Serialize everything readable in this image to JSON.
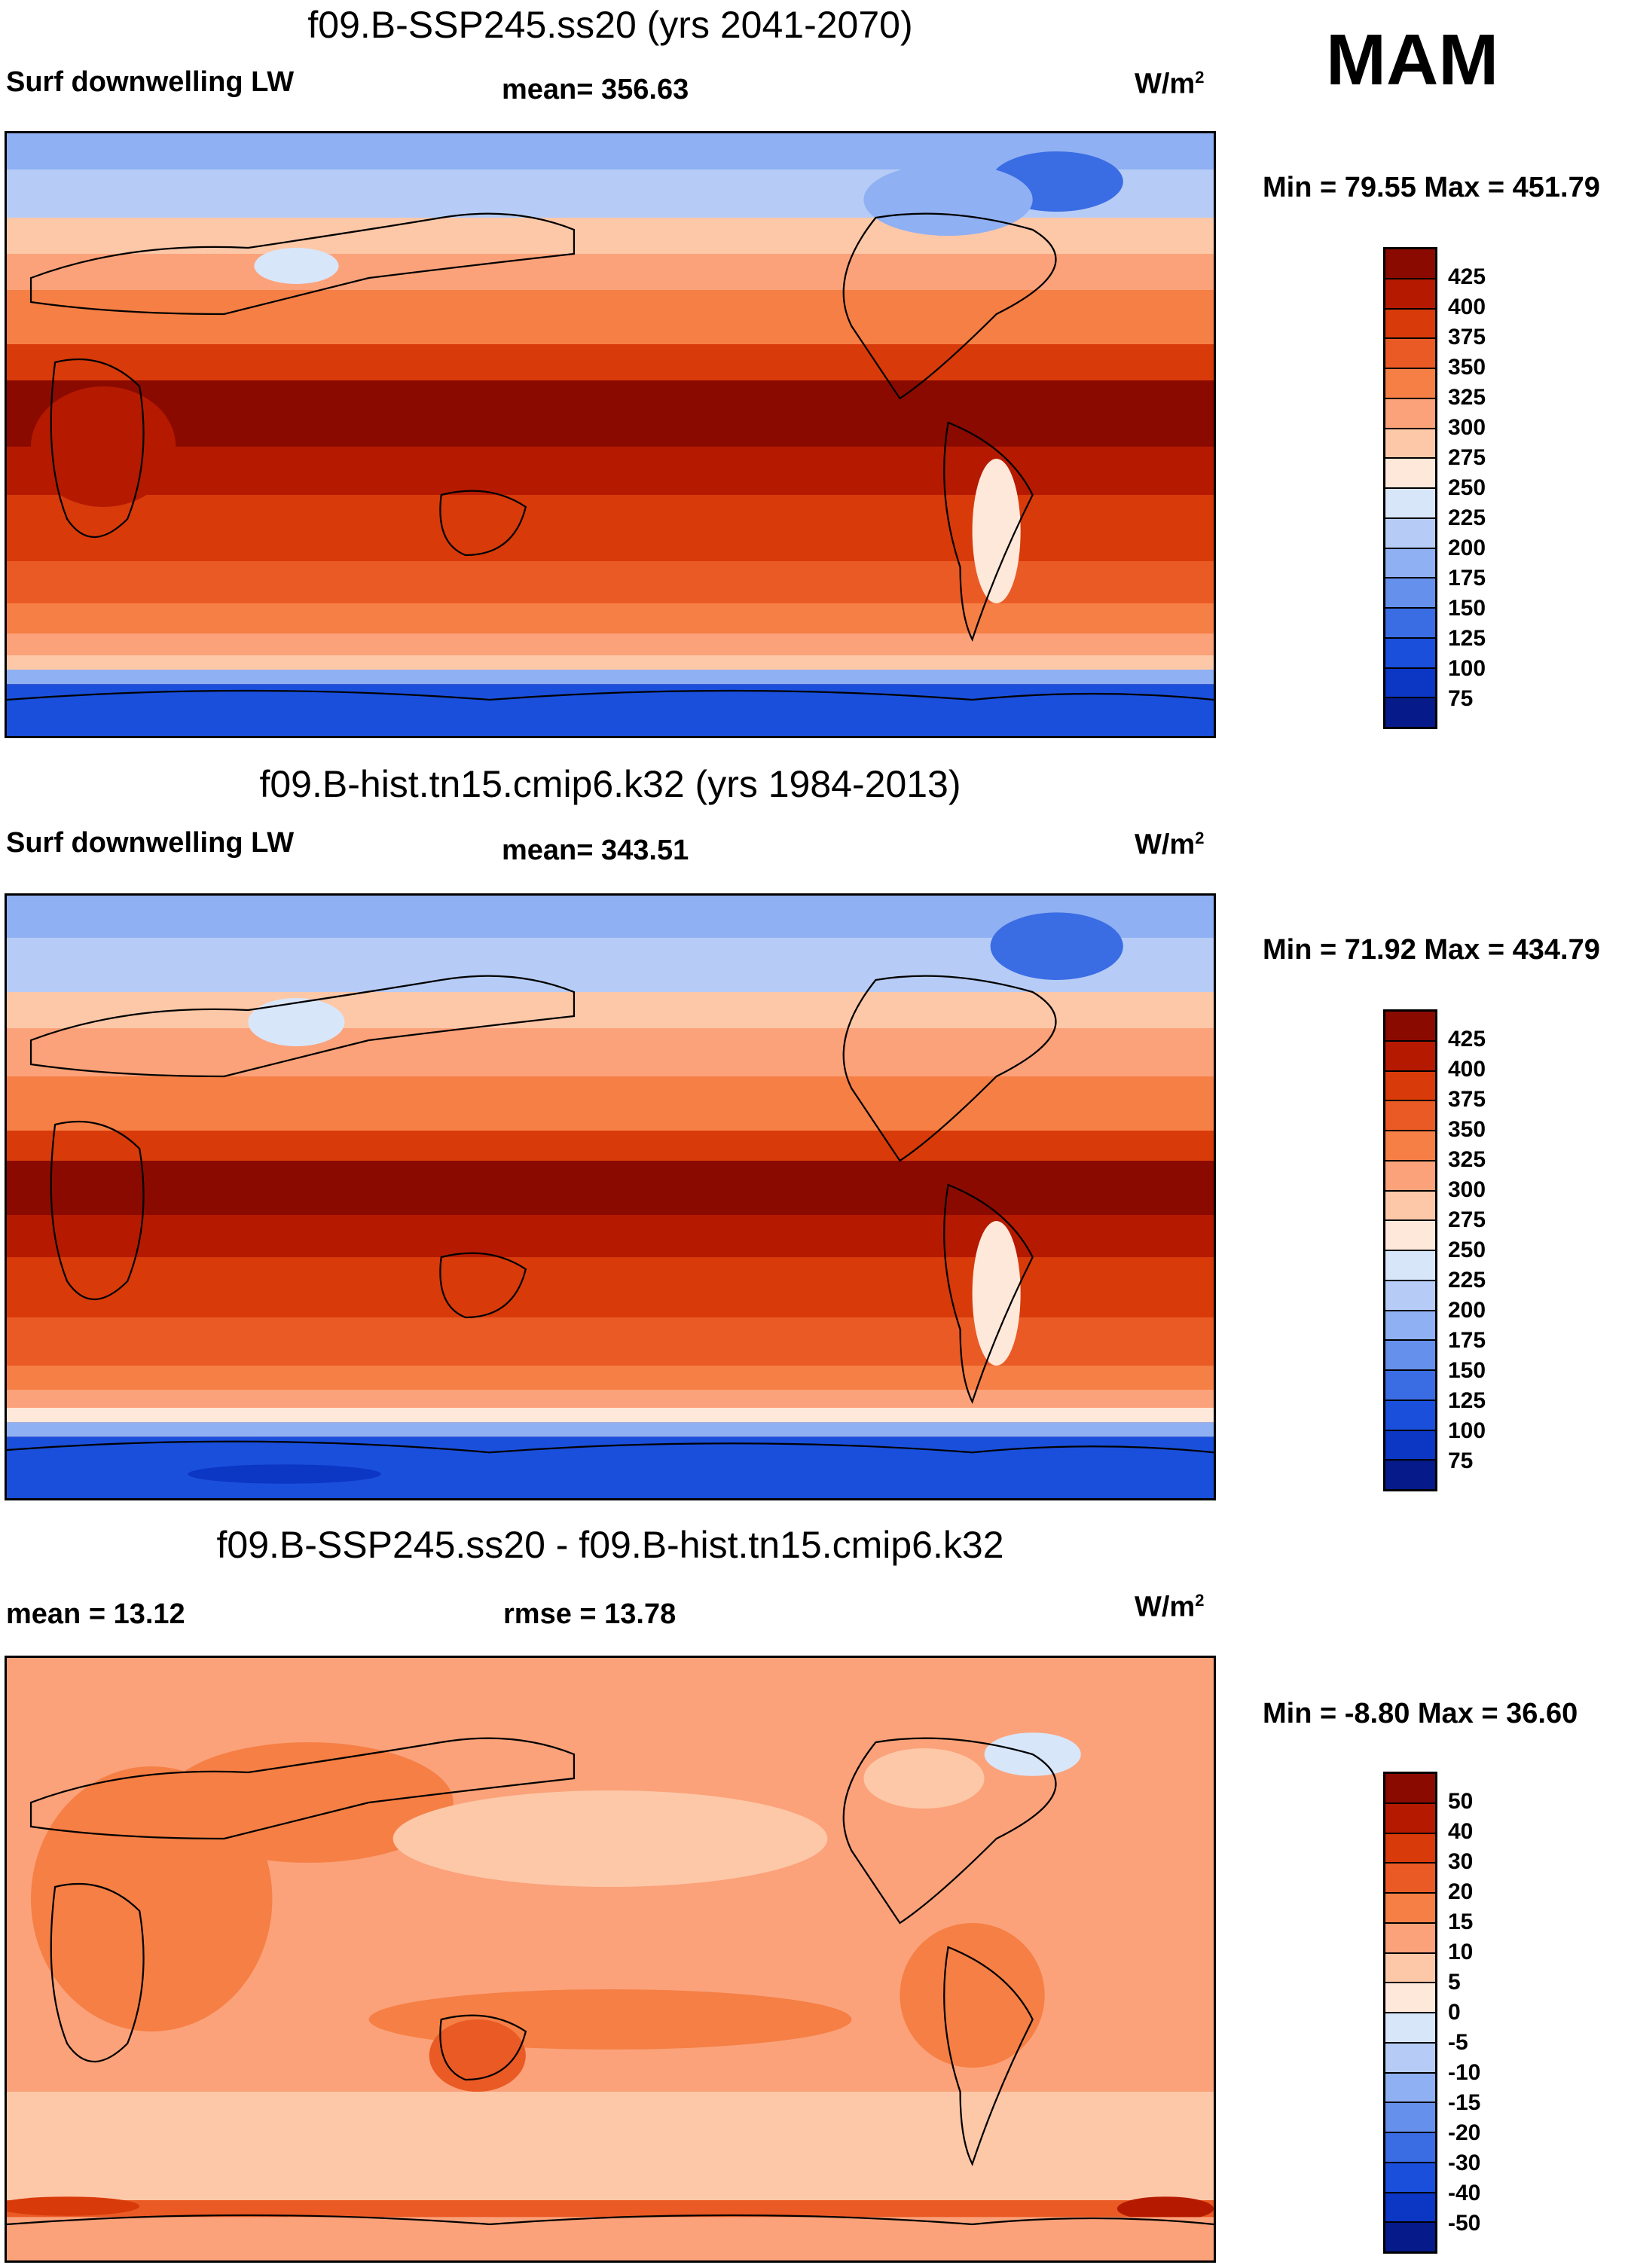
{
  "season": "MAM",
  "units": "W/m",
  "units_sup": "2",
  "panels": [
    {
      "title": "f09.B-SSP245.ss20 (yrs 2041-2070)",
      "left_label": "Surf downwelling LW",
      "center_label": "mean= 356.63",
      "minmax": "Min =  79.55 Max = 451.79"
    },
    {
      "title": "f09.B-hist.tn15.cmip6.k32 (yrs 1984-2013)",
      "left_label": "Surf downwelling LW",
      "center_label": "mean= 343.51",
      "minmax": "Min =  71.92 Max = 434.79"
    },
    {
      "title": "f09.B-SSP245.ss20 - f09.B-hist.tn15.cmip6.k32",
      "left_label": "mean =  13.12",
      "center_label": "rmse =  13.78",
      "minmax": "Min =  -8.80 Max =  36.60"
    }
  ],
  "colorbars": [
    {
      "labels": [
        "425",
        "400",
        "375",
        "350",
        "325",
        "300",
        "275",
        "250",
        "225",
        "200",
        "175",
        "150",
        "125",
        "100",
        "75"
      ],
      "colors": [
        "#8b0a00",
        "#b51a00",
        "#d83a0a",
        "#ea5a25",
        "#f57f45",
        "#fba27a",
        "#fdc8a8",
        "#fee8da",
        "#d8e6fa",
        "#b6ccf6",
        "#8fb0f2",
        "#6590ec",
        "#3a6ce4",
        "#1a4fdc",
        "#0c36c4",
        "#061a8a"
      ]
    },
    {
      "labels": [
        "425",
        "400",
        "375",
        "350",
        "325",
        "300",
        "275",
        "250",
        "225",
        "200",
        "175",
        "150",
        "125",
        "100",
        "75"
      ],
      "colors": [
        "#8b0a00",
        "#b51a00",
        "#d83a0a",
        "#ea5a25",
        "#f57f45",
        "#fba27a",
        "#fdc8a8",
        "#fee8da",
        "#d8e6fa",
        "#b6ccf6",
        "#8fb0f2",
        "#6590ec",
        "#3a6ce4",
        "#1a4fdc",
        "#0c36c4",
        "#061a8a"
      ]
    },
    {
      "labels": [
        "50",
        "40",
        "30",
        "20",
        "15",
        "10",
        "5",
        "0",
        "-5",
        "-10",
        "-15",
        "-20",
        "-30",
        "-40",
        "-50"
      ],
      "colors": [
        "#8b0a00",
        "#b51a00",
        "#d83a0a",
        "#ea5a25",
        "#f57f45",
        "#fba27a",
        "#fdc8a8",
        "#fee8da",
        "#d8e6fa",
        "#b6ccf6",
        "#8fb0f2",
        "#6590ec",
        "#3a6ce4",
        "#1a4fdc",
        "#0c36c4",
        "#061a8a"
      ]
    }
  ]
}
